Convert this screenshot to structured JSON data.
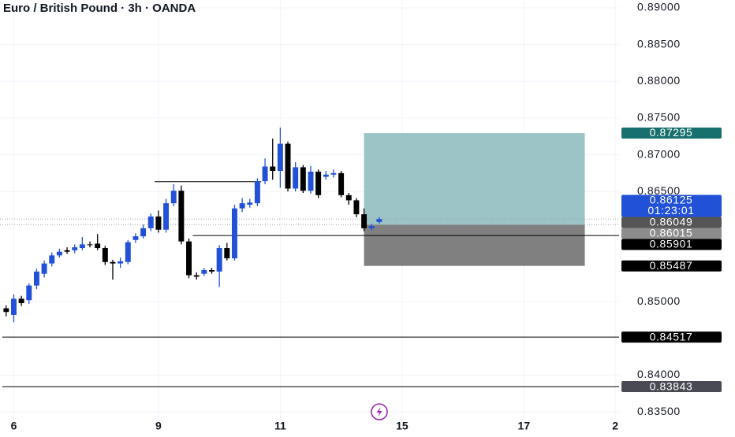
{
  "chart_data": {
    "type": "candlestick",
    "title": "Euro / British Pound · 3h · OANDA",
    "categories": [
      null,
      "6",
      null,
      null,
      null,
      null,
      null,
      null,
      null,
      null,
      null,
      null,
      null,
      null,
      null,
      null,
      null,
      null,
      null,
      null,
      "9",
      null,
      null,
      null,
      null,
      null,
      null,
      null,
      null,
      null,
      null,
      null,
      null,
      null,
      null,
      null,
      "11",
      null,
      null,
      null,
      null,
      null,
      null,
      null,
      null,
      null,
      null,
      null,
      null,
      null,
      null,
      null,
      "15",
      null,
      null,
      null,
      null,
      null,
      null,
      null,
      null,
      null,
      null,
      null,
      null,
      null,
      null,
      null,
      "17",
      null,
      null,
      null,
      null,
      null,
      null,
      null,
      null,
      null,
      null,
      null,
      "2"
    ],
    "open": [
      0.8491,
      0.8482,
      0.8504,
      0.8502,
      0.8522,
      0.8538,
      0.8552,
      0.8563,
      0.857,
      0.857,
      0.8573,
      0.8578,
      0.8579,
      0.8573,
      0.8554,
      0.8552,
      0.8554,
      0.8584,
      0.8589,
      0.86,
      0.8616,
      0.8598,
      0.8634,
      0.8651,
      0.8582,
      0.8536,
      0.8538,
      0.8543,
      0.8541,
      0.8573,
      0.8559,
      0.8627,
      0.8632,
      0.8634,
      0.8664,
      0.8684,
      0.8678,
      0.8715,
      0.8654,
      0.8683,
      0.8651,
      0.8677,
      0.867,
      0.8673,
      0.8675,
      0.8645,
      0.8638,
      0.8619,
      0.86,
      0.86086,
      null,
      null,
      null,
      null,
      null,
      null,
      null,
      null,
      null,
      null,
      null,
      null,
      null,
      null,
      null,
      null,
      null,
      null,
      null,
      null,
      null,
      null,
      null,
      null,
      null,
      null,
      null,
      null,
      null,
      null,
      null
    ],
    "high": [
      0.8495,
      0.851,
      0.8508,
      0.8525,
      0.8545,
      0.8556,
      0.8567,
      0.8572,
      0.8574,
      0.8578,
      0.8588,
      0.8582,
      0.8592,
      0.8576,
      0.8557,
      0.856,
      0.8584,
      0.8593,
      0.8605,
      0.862,
      0.8624,
      0.864,
      0.866,
      0.8658,
      0.8586,
      0.854,
      0.8546,
      0.8546,
      0.8577,
      0.858,
      0.8632,
      0.8641,
      0.864,
      0.8668,
      0.8695,
      0.8722,
      0.8737,
      0.8718,
      0.869,
      0.8686,
      0.8685,
      0.868,
      0.8678,
      0.868,
      0.8678,
      0.8648,
      0.8641,
      0.8627,
      0.8606,
      0.8615,
      null,
      null,
      null,
      null,
      null,
      null,
      null,
      null,
      null,
      null,
      null,
      null,
      null,
      null,
      null,
      null,
      null,
      null,
      null,
      null,
      null,
      null,
      null,
      null,
      null,
      null,
      null,
      null,
      null,
      null,
      null
    ],
    "low": [
      0.848,
      0.8472,
      0.8494,
      0.8497,
      0.8517,
      0.8533,
      0.8548,
      0.856,
      0.8565,
      0.8566,
      0.857,
      0.8574,
      0.857,
      0.855,
      0.853,
      0.8546,
      0.8551,
      0.858,
      0.8586,
      0.8596,
      0.8594,
      0.8594,
      0.863,
      0.8578,
      0.8532,
      0.853,
      0.8535,
      0.8538,
      0.852,
      0.8556,
      0.8556,
      0.8622,
      0.8628,
      0.863,
      0.866,
      0.8666,
      0.8655,
      0.865,
      0.865,
      0.8648,
      0.8647,
      0.8641,
      0.8666,
      0.8669,
      0.8642,
      0.8632,
      0.8615,
      0.8596,
      0.8597,
      0.8606,
      null,
      null,
      null,
      null,
      null,
      null,
      null,
      null,
      null,
      null,
      null,
      null,
      null,
      null,
      null,
      null,
      null,
      null,
      null,
      null,
      null,
      null,
      null,
      null,
      null,
      null,
      null,
      null,
      null,
      null,
      null
    ],
    "close": [
      0.8486,
      0.8504,
      0.8498,
      0.8522,
      0.8541,
      0.8552,
      0.8563,
      0.8568,
      0.8568,
      0.8574,
      0.8578,
      0.8577,
      0.8573,
      0.8554,
      0.8552,
      0.8555,
      0.8581,
      0.8589,
      0.86,
      0.8616,
      0.8598,
      0.8634,
      0.8651,
      0.8582,
      0.8536,
      0.8534,
      0.8543,
      0.8541,
      0.8573,
      0.8559,
      0.8627,
      0.8634,
      0.8635,
      0.8664,
      0.8684,
      0.8678,
      0.8715,
      0.8654,
      0.8683,
      0.8651,
      0.8677,
      0.8645,
      0.8673,
      0.8675,
      0.8645,
      0.8638,
      0.8619,
      0.86,
      0.8603,
      0.86125,
      null,
      null,
      null,
      null,
      null,
      null,
      null,
      null,
      null,
      null,
      null,
      null,
      null,
      null,
      null,
      null,
      null,
      null,
      null,
      null,
      null,
      null,
      null,
      null,
      null,
      null,
      null,
      null,
      null,
      null,
      null
    ],
    "up_color": "#2151d6",
    "down_color": "#000000",
    "ylim": [
      0.83372,
      0.89107
    ],
    "yticks": [
      {
        "value": 0.89,
        "label": "0.89000"
      },
      {
        "value": 0.885,
        "label": "0.88500"
      },
      {
        "value": 0.88,
        "label": "0.88000"
      },
      {
        "value": 0.875,
        "label": "0.87500"
      },
      {
        "value": 0.87,
        "label": "0.87000"
      },
      {
        "value": 0.865,
        "label": "0.86500"
      },
      {
        "value": 0.85,
        "label": "0.85000"
      },
      {
        "value": 0.84,
        "label": "0.84000"
      },
      {
        "value": 0.835,
        "label": "0.83500"
      }
    ],
    "grid": true,
    "lines": [
      {
        "value": 0.86634,
        "start": 20,
        "end": 33
      },
      {
        "value": 0.85901,
        "start": 25,
        "end": 80
      },
      {
        "value": 0.84517,
        "start": 0,
        "end": 80
      },
      {
        "value": 0.83843,
        "start": 0,
        "end": 80
      }
    ],
    "position": {
      "start": 47,
      "end": 76,
      "target": 0.87295,
      "entry": 0.86049,
      "stop": 0.85487,
      "target_color": "#9cc4c7",
      "stop_color": "#808080"
    },
    "price_labels": [
      {
        "value": 0.87295,
        "color": "#17706e"
      },
      {
        "value": 0.86125,
        "countdown": "01:23:01",
        "color": "#2151d6",
        "dotted": true
      },
      {
        "value": 0.86049,
        "color": "#555555",
        "dotted": true
      },
      {
        "value": 0.86015,
        "color": "#8c8c8c"
      },
      {
        "value": 0.85901,
        "color": "#000000"
      },
      {
        "value": 0.85487,
        "color": "#000000"
      },
      {
        "value": 0.84517,
        "color": "#000000"
      },
      {
        "value": 0.83843,
        "color": "#4a4a55"
      }
    ]
  }
}
